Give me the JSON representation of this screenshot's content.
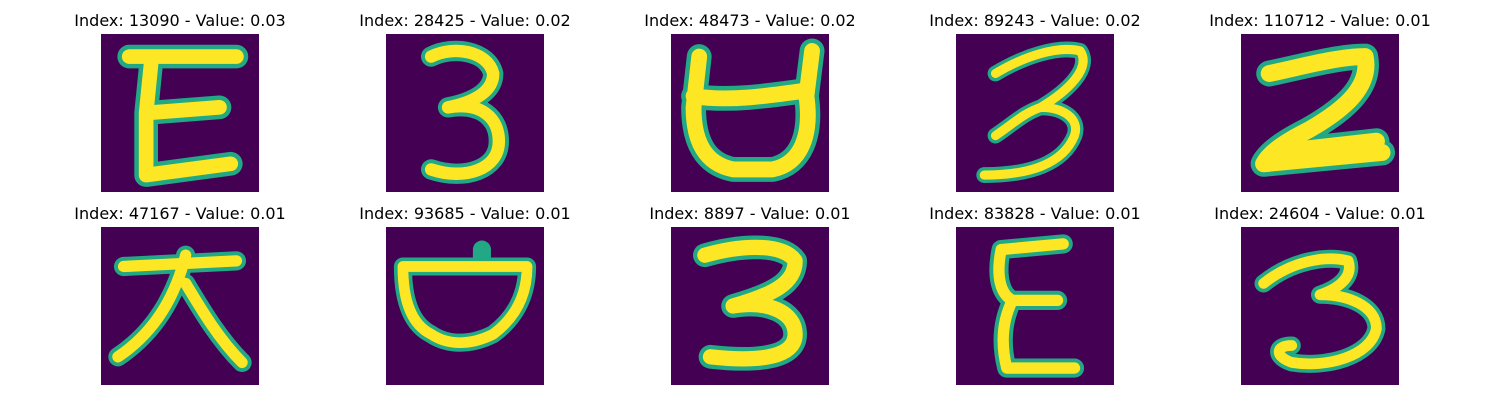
{
  "colors": {
    "background": "#440154",
    "stroke_core": "#fde725",
    "stroke_edge": "#22a884"
  },
  "panels": [
    {
      "title": "Index: 13090 - Value: 0.03",
      "glyph": "E-shaped"
    },
    {
      "title": "Index: 28425 - Value: 0.02",
      "glyph": "3-shaped"
    },
    {
      "title": "Index: 48473 - Value: 0.02",
      "glyph": "ㅂ-shaped"
    },
    {
      "title": "Index: 89243 - Value: 0.02",
      "glyph": "3-shaped"
    },
    {
      "title": "Index: 110712 - Value: 0.01",
      "glyph": "2-shaped"
    },
    {
      "title": "Index: 47167 - Value: 0.01",
      "glyph": "ㅈ-shaped"
    },
    {
      "title": "Index: 93685 - Value: 0.01",
      "glyph": "ㅂ-shaped"
    },
    {
      "title": "Index: 8897 - Value: 0.01",
      "glyph": "3-shaped"
    },
    {
      "title": "Index: 83828 - Value: 0.01",
      "glyph": "E-shaped"
    },
    {
      "title": "Index: 24604 - Value: 0.01",
      "glyph": "3-shaped"
    }
  ]
}
